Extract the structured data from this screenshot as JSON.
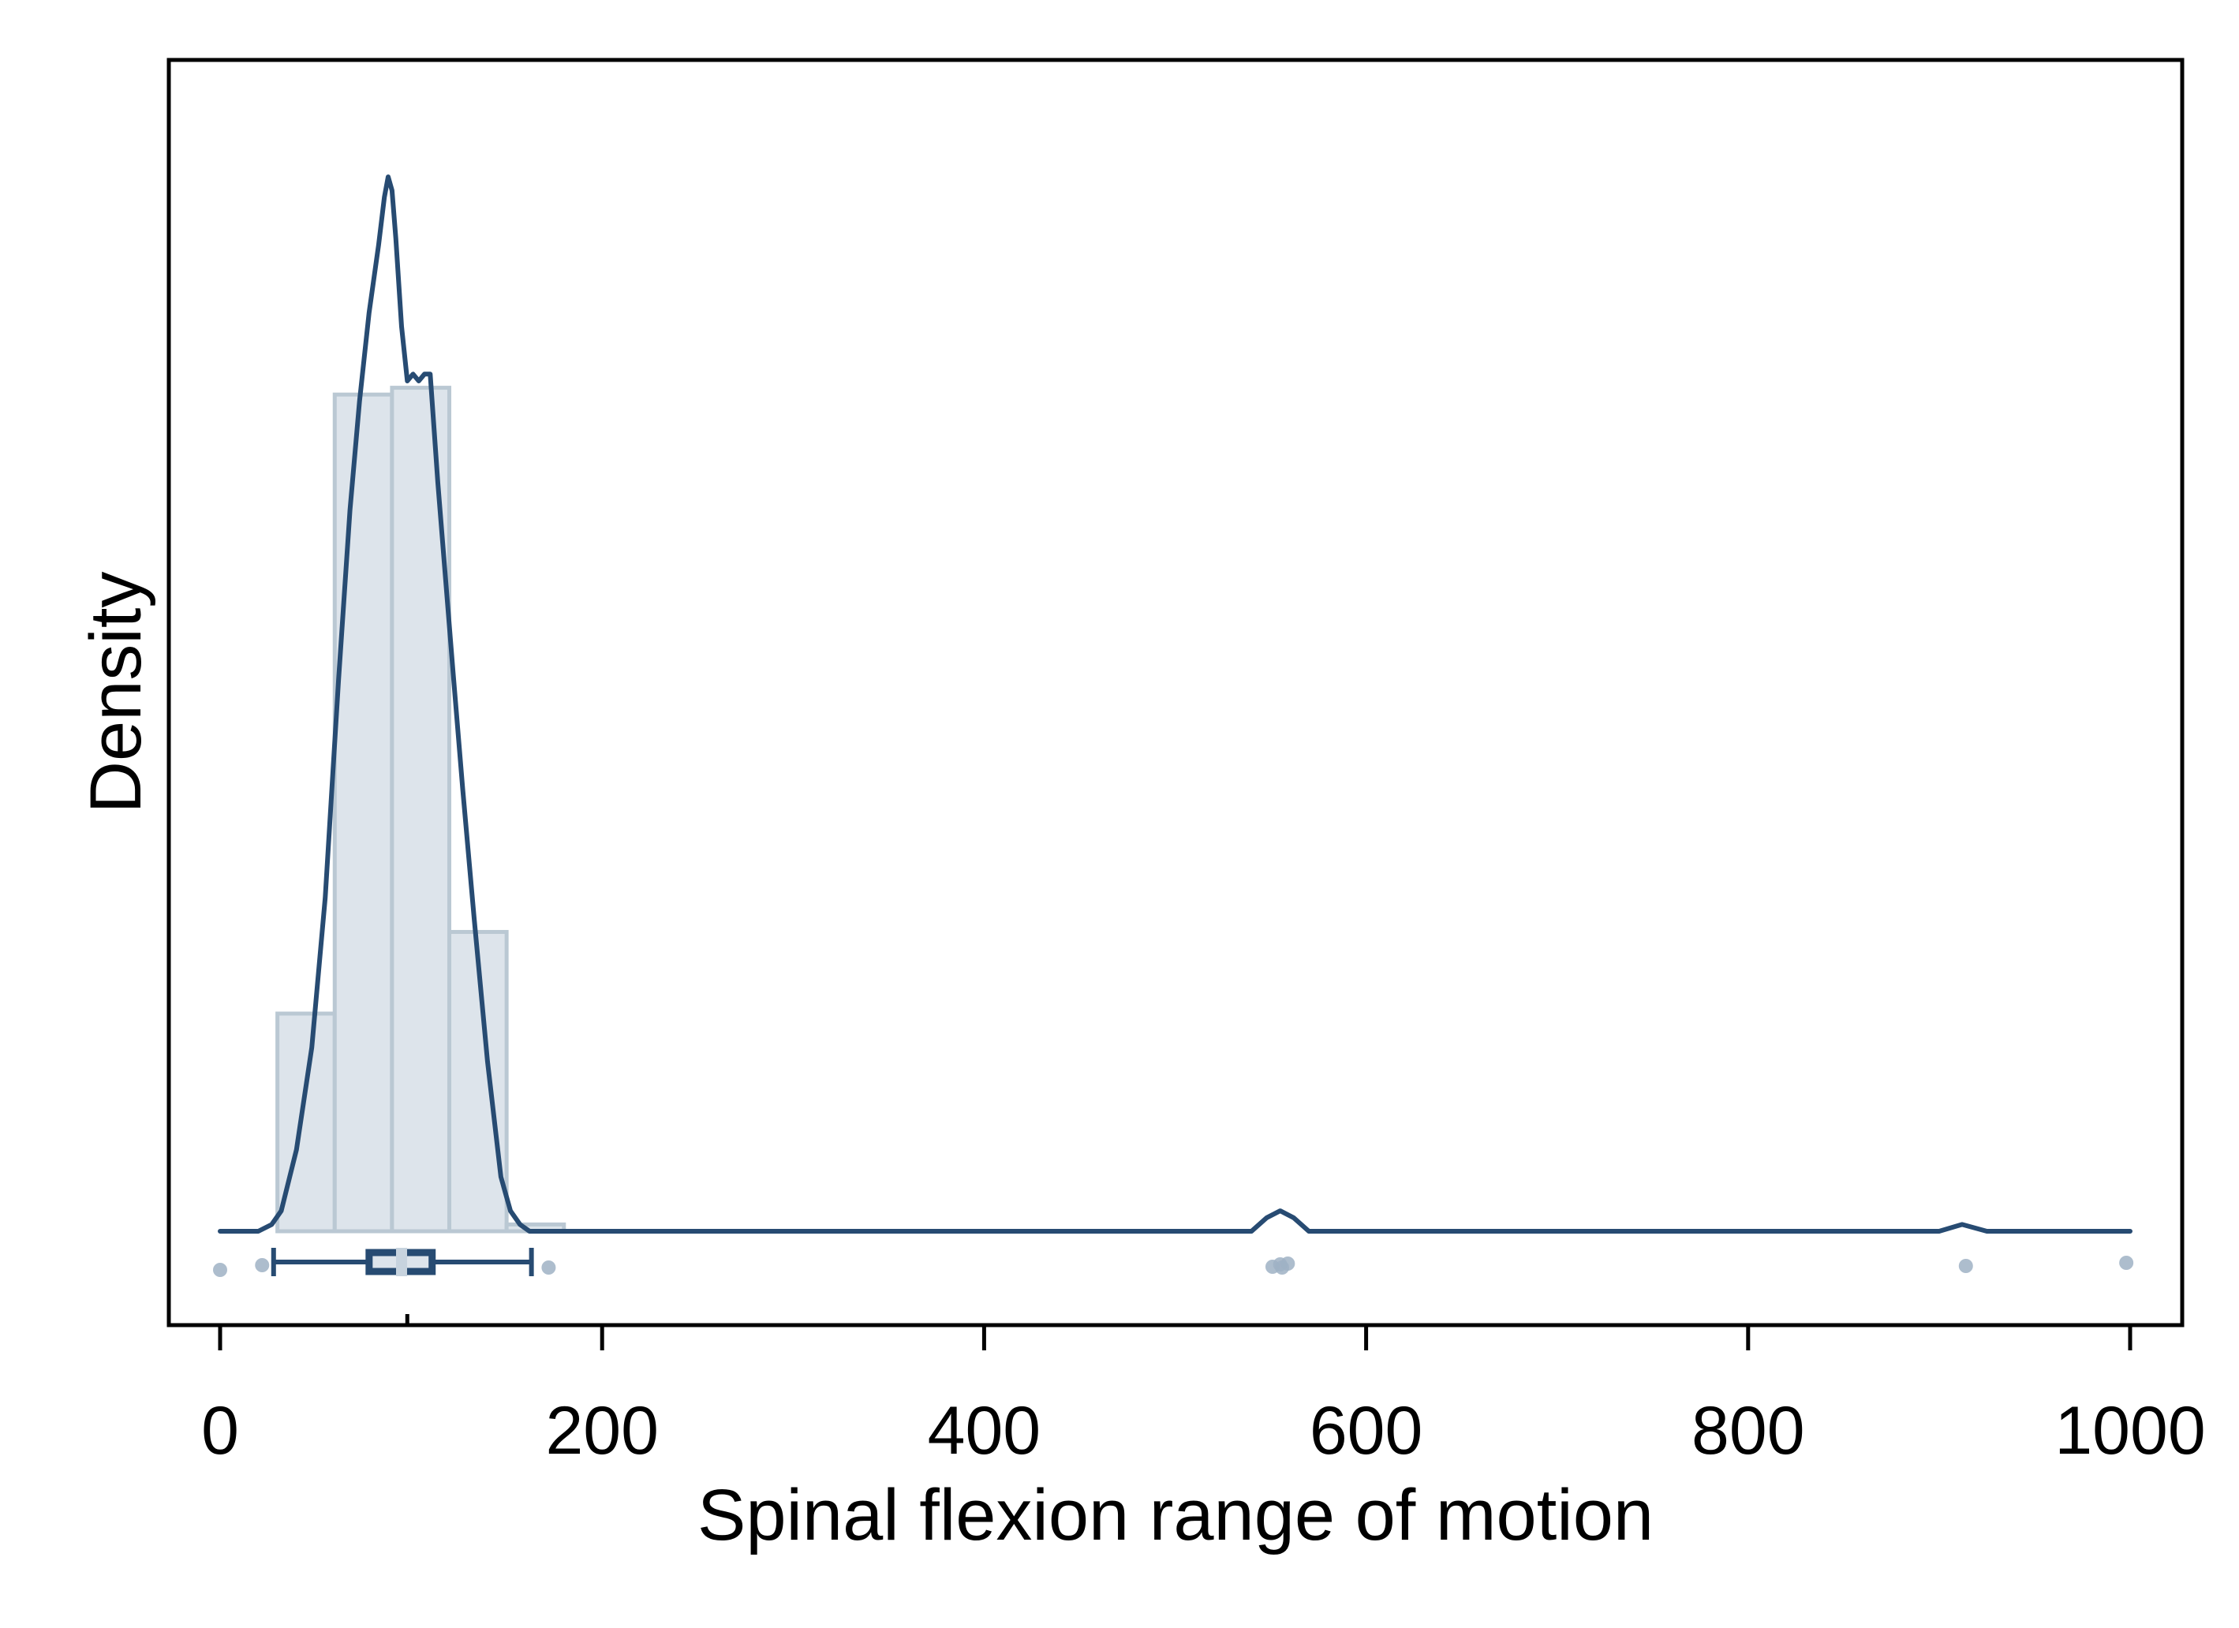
{
  "chart_data": {
    "type": "histogram",
    "title": "",
    "xlabel": "Spinal flexion range of motion",
    "ylabel": "Density",
    "xlim": [
      -25,
      1030
    ],
    "x_ticks": [
      0,
      200,
      400,
      600,
      800,
      1000
    ],
    "x_tick_labels": [
      "0",
      "200",
      "400",
      "600",
      "800",
      "1000"
    ],
    "y_ticks_shown": false,
    "ylim": [
      0,
      0.0165
    ],
    "grid": false,
    "legend": "none",
    "histogram": {
      "bin_edges": [
        30,
        60,
        90,
        120,
        150,
        180
      ],
      "density": [
        0.0032,
        0.0123,
        0.0124,
        0.0044,
        0.0001
      ]
    },
    "density_curve": {
      "x": [
        0,
        20,
        27,
        32,
        40,
        48,
        55,
        62,
        68,
        73,
        78,
        83,
        86,
        88,
        90,
        92,
        95,
        98,
        101,
        104,
        107,
        110,
        114,
        118,
        122,
        127,
        133,
        140,
        147,
        152,
        157,
        162,
        167,
        175,
        200,
        540,
        548,
        555,
        562,
        570,
        600,
        900,
        912,
        925,
        980,
        1000
      ],
      "y": [
        0.0,
        0.0,
        0.0001,
        0.0003,
        0.0012,
        0.0027,
        0.0049,
        0.0081,
        0.0106,
        0.0122,
        0.0135,
        0.0145,
        0.0152,
        0.0155,
        0.0153,
        0.0146,
        0.0133,
        0.0125,
        0.0126,
        0.0125,
        0.0126,
        0.0126,
        0.011,
        0.0096,
        0.0082,
        0.0065,
        0.0046,
        0.0025,
        0.0008,
        0.0003,
        0.0001,
        0.0,
        0.0,
        0.0,
        0.0,
        0.0,
        0.0002,
        0.0003,
        0.0002,
        0.0,
        0.0,
        0.0,
        0.0001,
        0.0,
        0.0,
        0.0
      ]
    },
    "boxplot": {
      "whisker_low": 28,
      "q1": 78,
      "median": 95,
      "q3": 111,
      "whisker_high": 163,
      "outliers": [
        0,
        22,
        172,
        551,
        555,
        556,
        559,
        914,
        998
      ]
    },
    "colors": {
      "curve": "#274b72",
      "bars_fill": "#dde4eb",
      "bars_edge": "#bac8d3",
      "points": "#9fb1c4"
    }
  }
}
